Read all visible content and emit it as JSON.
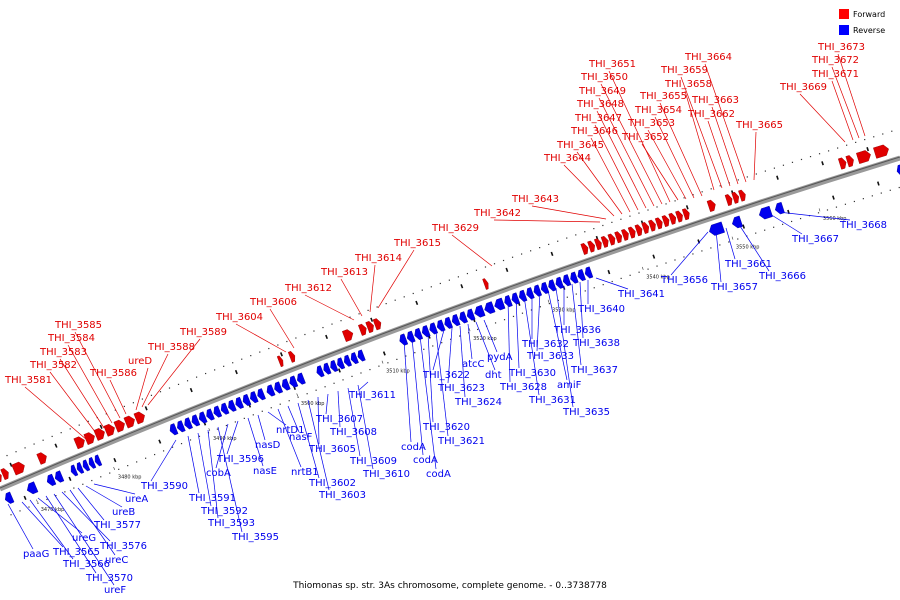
{
  "caption": "Thiomonas sp. str. 3As chromosome, complete genome. - 0..3738778",
  "legend": [
    {
      "label": "Forward",
      "color": "#ff0000"
    },
    {
      "label": "Reverse",
      "color": "#0000ff"
    }
  ],
  "colors": {
    "forward": "#e00000",
    "reverse": "#0000ee",
    "backbone": "#777777"
  },
  "kbp_ticks": [
    {
      "t": 0.03,
      "label": "3470 kbp"
    },
    {
      "t": 0.116,
      "label": "3480 kbp"
    },
    {
      "t": 0.222,
      "label": "3490 kbp"
    },
    {
      "t": 0.32,
      "label": "3500 kbp"
    },
    {
      "t": 0.415,
      "label": "3510 kbp"
    },
    {
      "t": 0.512,
      "label": "3520 kbp"
    },
    {
      "t": 0.6,
      "label": "3530 kbp"
    },
    {
      "t": 0.705,
      "label": "3540 kbp"
    },
    {
      "t": 0.805,
      "label": "3550 kbp"
    },
    {
      "t": 0.902,
      "label": "3560 kbp"
    }
  ],
  "forward_labels": [
    "THI_3581",
    "THI_3582",
    "THI_3583",
    "THI_3584",
    "THI_3585",
    "THI_3586",
    "ureD",
    "THI_3588",
    "THI_3589",
    "THI_3604",
    "THI_3606",
    "THI_3612",
    "THI_3613",
    "THI_3614",
    "THI_3615",
    "THI_3629",
    "THI_3642",
    "THI_3643",
    "THI_3644",
    "THI_3645",
    "THI_3646",
    "THI_3647",
    "THI_3648",
    "THI_3649",
    "THI_3650",
    "THI_3651",
    "THI_3652",
    "THI_3653",
    "THI_3654",
    "THI_3655",
    "THI_3658",
    "THI_3659",
    "THI_3662",
    "THI_3663",
    "THI_3664",
    "THI_3665",
    "THI_3669",
    "THI_3671",
    "THI_3672",
    "THI_3673"
  ],
  "reverse_labels": [
    "paaG",
    "THI_3565",
    "THI_3566",
    "ureG",
    "THI_3570",
    "ureF",
    "THI_3576",
    "ureC",
    "THI_3577",
    "ureB",
    "ureA",
    "THI_3590",
    "THI_3591",
    "THI_3592",
    "THI_3593",
    "THI_3595",
    "cobA",
    "THI_3596",
    "nasE",
    "nasD",
    "nrtD1",
    "nrtB1",
    "nasF",
    "THI_3602",
    "THI_3603",
    "THI_3605",
    "THI_3607",
    "THI_3608",
    "THI_3609",
    "THI_3610",
    "THI_3611",
    "codA",
    "codA",
    "codA",
    "THI_3620",
    "THI_3621",
    "THI_3622",
    "THI_3623",
    "THI_3624",
    "atcC",
    "dht",
    "pydA",
    "THI_3628",
    "THI_3630",
    "THI_3631",
    "THI_3632",
    "THI_3633",
    "amiF",
    "THI_3635",
    "THI_3636",
    "THI_3637",
    "THI_3638",
    "THI_3640",
    "THI_3641",
    "THI_3656",
    "THI_3657",
    "THI_3661",
    "THI_3666",
    "THI_3667",
    "THI_3668"
  ]
}
